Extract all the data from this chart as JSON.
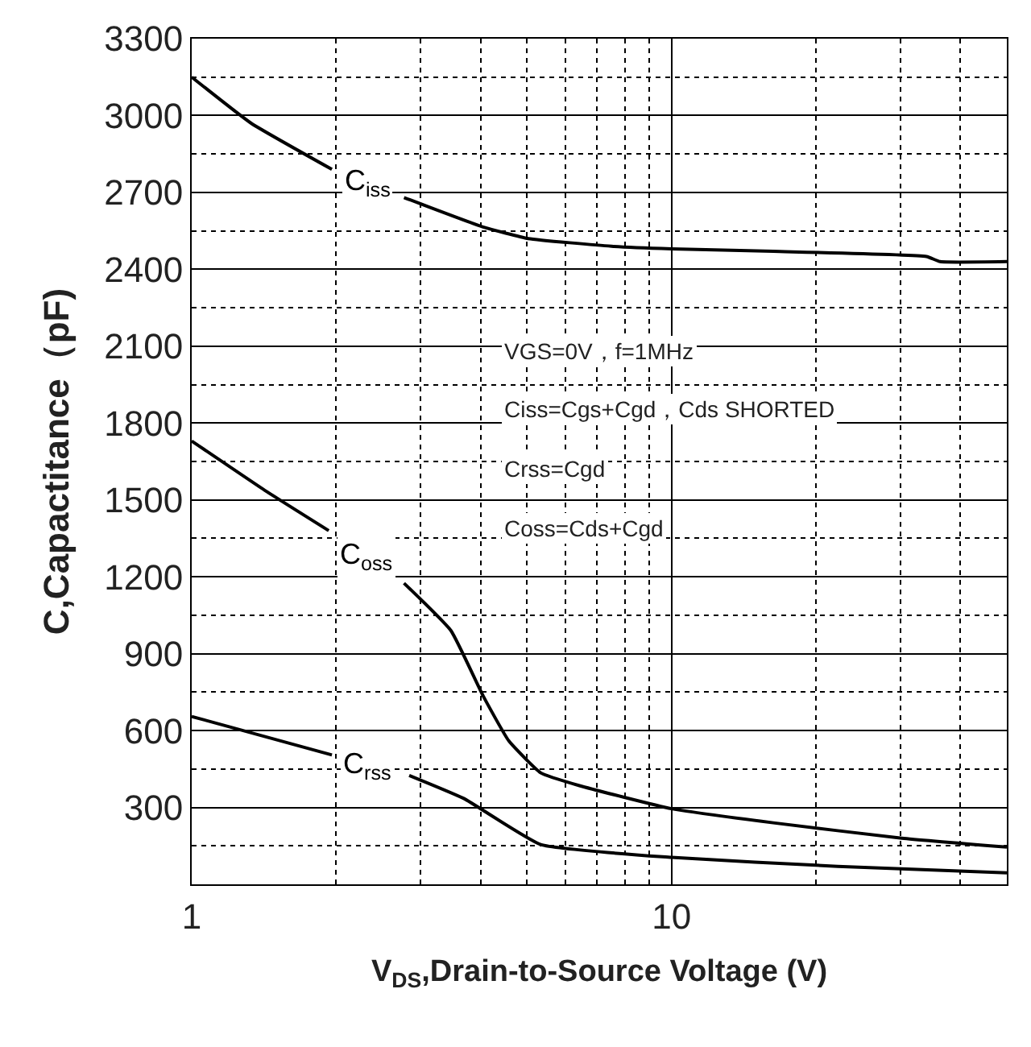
{
  "chart_data": {
    "type": "line",
    "xlabel": "V$_{DS}$,Drain-to-Source Voltage (V)",
    "ylabel": "C,Capactitance（pF)",
    "log": "x",
    "xlim": [
      1,
      50
    ],
    "xticks": [
      1,
      10
    ],
    "ylim": [
      0,
      3300
    ],
    "yticks": [
      300,
      600,
      900,
      1200,
      1500,
      1800,
      2100,
      2400,
      2700,
      3000,
      3300
    ],
    "grid": true,
    "legend": false,
    "marker": "none",
    "line_style": "solid",
    "series": [
      {
        "name": "C$_{iss}$",
        "color": "#000000",
        "x": [
          1,
          1.33,
          1.96,
          2.32,
          2.77,
          4.05,
          5.03,
          7.5,
          10,
          16.3,
          34,
          36.3,
          50
        ],
        "values": [
          3150,
          2970,
          2790,
          null,
          2680,
          2565,
          2520,
          2490,
          2480,
          2470,
          2450,
          2430,
          2430
        ]
      },
      {
        "name": "C$_{oss}$",
        "color": "#000000",
        "x": [
          1,
          1.44,
          1.93,
          2.32,
          2.77,
          3.47,
          4.05,
          4.58,
          5.34,
          6.43,
          10,
          16.3,
          30.2,
          50
        ],
        "values": [
          1730,
          1530,
          1380,
          null,
          1175,
          990,
          735,
          560,
          435,
          385,
          295,
          240,
          180,
          145
        ]
      },
      {
        "name": "C$_{rss}$",
        "color": "#000000",
        "x": [
          1,
          1.96,
          2.32,
          2.84,
          3.69,
          5.34,
          10,
          22.2,
          50
        ],
        "values": [
          655,
          505,
          null,
          425,
          335,
          155,
          105,
          70,
          45
        ]
      }
    ],
    "annotations": [
      "VGS=0V，f=1MHz",
      "Ciss=Cgs+Cgd，Cds SHORTED",
      "Crss=Cgd",
      "Coss=Cds+Cgd"
    ]
  }
}
